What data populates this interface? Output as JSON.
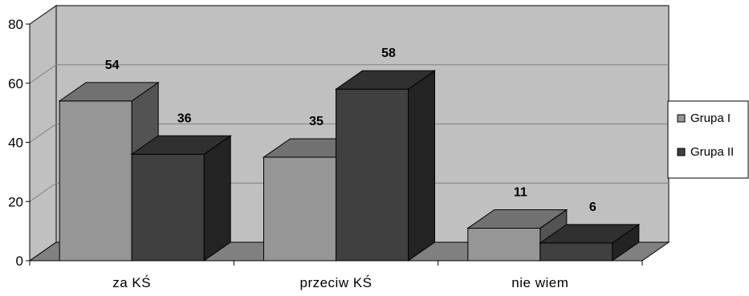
{
  "chart_data": {
    "type": "bar",
    "categories": [
      "za KŚ",
      "przeciw KŚ",
      "nie wiem"
    ],
    "series": [
      {
        "name": "Grupa I",
        "values": [
          54,
          35,
          11
        ]
      },
      {
        "name": "Grupa II",
        "values": [
          36,
          58,
          6
        ]
      }
    ],
    "ylim": [
      0,
      80
    ],
    "yticks": [
      0,
      20,
      40,
      60,
      80
    ],
    "grid": true,
    "legend": "right",
    "colors": {
      "series": [
        "#969696",
        "#404040"
      ],
      "wall": "#c0c0c0",
      "floor": "#808080",
      "gridline": "#808080"
    }
  }
}
